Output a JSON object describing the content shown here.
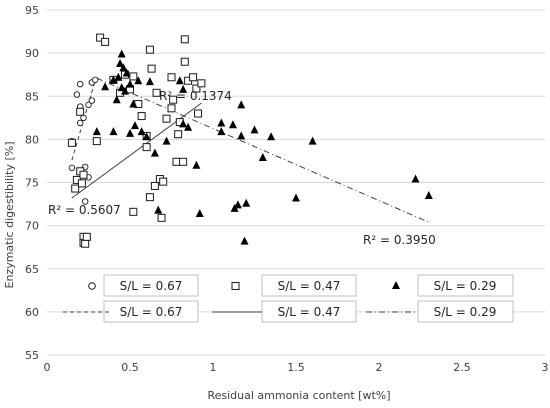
{
  "chart_data": {
    "type": "scatter",
    "title": "",
    "xlabel": "Residual ammonia content [wt%]",
    "ylabel": "Enzymatic digestibility [%]",
    "xlim": [
      0,
      3
    ],
    "ylim": [
      55,
      95
    ],
    "xticks": [
      0,
      0.5,
      1,
      1.5,
      2,
      2.5,
      3
    ],
    "xtick_labels": [
      "0",
      "0.5",
      "1",
      "1.5",
      "2",
      "2.5",
      "3"
    ],
    "yticks": [
      55,
      60,
      65,
      70,
      75,
      80,
      85,
      90,
      95
    ],
    "ytick_labels": [
      "55",
      "60",
      "65",
      "70",
      "75",
      "80",
      "85",
      "90",
      "95"
    ],
    "grid": "horizontal",
    "series": [
      {
        "name": "S/L = 0.67",
        "marker": "circle",
        "points": [
          [
            0.15,
            76.7
          ],
          [
            0.15,
            79.8
          ],
          [
            0.18,
            85.2
          ],
          [
            0.2,
            81.9
          ],
          [
            0.2,
            83.8
          ],
          [
            0.2,
            86.4
          ],
          [
            0.22,
            82.5
          ],
          [
            0.23,
            76.8
          ],
          [
            0.23,
            72.8
          ],
          [
            0.25,
            75.6
          ],
          [
            0.25,
            84.0
          ],
          [
            0.27,
            86.6
          ],
          [
            0.27,
            84.5
          ],
          [
            0.29,
            86.9
          ]
        ]
      },
      {
        "name": "S/L = 0.47",
        "marker": "square",
        "points": [
          [
            0.15,
            79.6
          ],
          [
            0.17,
            74.3
          ],
          [
            0.18,
            75.3
          ],
          [
            0.2,
            83.2
          ],
          [
            0.2,
            76.3
          ],
          [
            0.21,
            74.9
          ],
          [
            0.22,
            75.9
          ],
          [
            0.22,
            68.7
          ],
          [
            0.22,
            68.0
          ],
          [
            0.23,
            67.9
          ],
          [
            0.24,
            68.7
          ],
          [
            0.3,
            79.8
          ],
          [
            0.32,
            91.8
          ],
          [
            0.35,
            91.3
          ],
          [
            0.4,
            86.9
          ],
          [
            0.44,
            85.4
          ],
          [
            0.47,
            87.5
          ],
          [
            0.5,
            85.8
          ],
          [
            0.52,
            87.3
          ],
          [
            0.52,
            71.6
          ],
          [
            0.55,
            84.1
          ],
          [
            0.57,
            82.7
          ],
          [
            0.6,
            80.4
          ],
          [
            0.6,
            79.1
          ],
          [
            0.62,
            90.4
          ],
          [
            0.62,
            73.3
          ],
          [
            0.63,
            88.2
          ],
          [
            0.65,
            74.6
          ],
          [
            0.66,
            85.4
          ],
          [
            0.68,
            75.4
          ],
          [
            0.69,
            70.9
          ],
          [
            0.7,
            75.1
          ],
          [
            0.72,
            82.4
          ],
          [
            0.75,
            83.6
          ],
          [
            0.75,
            87.2
          ],
          [
            0.76,
            84.6
          ],
          [
            0.78,
            77.4
          ],
          [
            0.79,
            80.6
          ],
          [
            0.8,
            82.0
          ],
          [
            0.82,
            77.4
          ],
          [
            0.83,
            91.6
          ],
          [
            0.83,
            89.0
          ],
          [
            0.85,
            86.8
          ],
          [
            0.88,
            87.2
          ],
          [
            0.9,
            85.9
          ],
          [
            0.91,
            83.0
          ],
          [
            0.93,
            86.5
          ]
        ]
      },
      {
        "name": "S/L = 0.29",
        "marker": "triangle",
        "points": [
          [
            0.3,
            80.9
          ],
          [
            0.35,
            86.1
          ],
          [
            0.4,
            80.9
          ],
          [
            0.4,
            86.9
          ],
          [
            0.42,
            84.6
          ],
          [
            0.43,
            87.2
          ],
          [
            0.44,
            88.8
          ],
          [
            0.45,
            86.0
          ],
          [
            0.45,
            89.9
          ],
          [
            0.46,
            88.3
          ],
          [
            0.47,
            85.6
          ],
          [
            0.48,
            87.7
          ],
          [
            0.5,
            86.4
          ],
          [
            0.5,
            80.7
          ],
          [
            0.52,
            84.1
          ],
          [
            0.53,
            81.6
          ],
          [
            0.55,
            86.8
          ],
          [
            0.57,
            80.9
          ],
          [
            0.6,
            80.3
          ],
          [
            0.62,
            86.7
          ],
          [
            0.65,
            78.4
          ],
          [
            0.67,
            71.8
          ],
          [
            0.72,
            79.8
          ],
          [
            0.8,
            86.8
          ],
          [
            0.82,
            81.8
          ],
          [
            0.82,
            85.8
          ],
          [
            0.85,
            81.4
          ],
          [
            0.9,
            77.0
          ],
          [
            0.92,
            71.4
          ],
          [
            1.05,
            81.9
          ],
          [
            1.05,
            80.9
          ],
          [
            1.12,
            81.7
          ],
          [
            1.13,
            72.0
          ],
          [
            1.15,
            72.4
          ],
          [
            1.17,
            84.0
          ],
          [
            1.17,
            80.4
          ],
          [
            1.19,
            68.2
          ],
          [
            1.2,
            72.6
          ],
          [
            1.25,
            81.1
          ],
          [
            1.3,
            77.9
          ],
          [
            1.35,
            80.3
          ],
          [
            1.5,
            73.2
          ],
          [
            1.6,
            79.8
          ],
          [
            2.22,
            75.4
          ],
          [
            2.3,
            73.5
          ]
        ]
      }
    ],
    "trendlines": [
      {
        "name": "S/L = 0.67",
        "style": "dashed",
        "x": [
          0.15,
          0.29
        ],
        "y": [
          77.6,
          86.8
        ],
        "r2_label": "R² = 0.5607"
      },
      {
        "name": "S/L = 0.47",
        "style": "solid",
        "x": [
          0.15,
          0.93
        ],
        "y": [
          73.2,
          84.2
        ],
        "r2_label": "R² = 0.1374"
      },
      {
        "name": "S/L = 0.29",
        "style": "dash-dot",
        "x": [
          0.3,
          2.3
        ],
        "y": [
          87.1,
          70.4
        ],
        "r2_label": "R² = 0.3950"
      }
    ],
    "legend_labels": [
      "S/L = 0.67",
      "S/L = 0.47",
      "S/L = 0.29",
      "S/L = 0.67",
      "S/L = 0.47",
      "S/L = 0.29"
    ],
    "legend_placement": "bottom, inside plot area"
  },
  "colors": {
    "marker_stroke": "#1a1a1a",
    "marker_fill_open": "#ffffff",
    "marker_fill_solid": "#000000",
    "trend_line": "#404040",
    "grid": "#d9d9d9",
    "axis_text": "#404040"
  }
}
